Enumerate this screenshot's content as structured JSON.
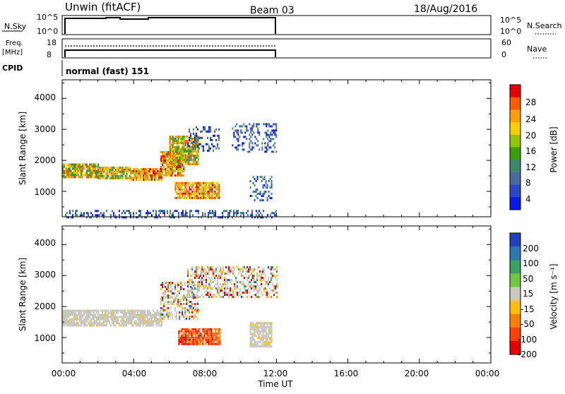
{
  "header": {
    "station": "Unwin (fitACF)",
    "beam": "Beam 03",
    "date": "18/Aug/2016"
  },
  "nsky_panel": {
    "label": "N.Sky",
    "left_ticks": [
      "10^5",
      "10^0"
    ],
    "right_ticks": [
      "10^5",
      "10^0"
    ],
    "right_label": "N.Search"
  },
  "freq_panel": {
    "label_line1": "Freq.",
    "label_line2": "[MHz]",
    "left_ticks": [
      "18",
      "8"
    ],
    "right_ticks": [
      "60",
      "0"
    ],
    "right_label": "Nave"
  },
  "cpid": {
    "label": "CPID",
    "value": "normal (fast) 151"
  },
  "chart_data": [
    {
      "type": "heatmap",
      "quantity": "Power",
      "ylabel": "Slant Range [km]",
      "ylim": [
        180,
        4600
      ],
      "yticks": [
        "4000",
        "3000",
        "2000",
        "1000"
      ],
      "xlim_hours": [
        0,
        24
      ],
      "colorbar": {
        "label": "Power [dB]",
        "ticks": [
          "28",
          "24",
          "20",
          "16",
          "12",
          "8",
          "4"
        ],
        "colors": [
          "#e80000",
          "#ff5a00",
          "#ffa000",
          "#ffd000",
          "#90c800",
          "#38a000",
          "#3a8a6a",
          "#4a6aa0",
          "#2848c8",
          "#0818f0"
        ]
      },
      "echo_regions": [
        {
          "t": [
            0.0,
            2.0
          ],
          "r": [
            1450,
            1900
          ],
          "level": "mid"
        },
        {
          "t": [
            2.0,
            3.8
          ],
          "r": [
            1400,
            1800
          ],
          "level": "mid"
        },
        {
          "t": [
            3.8,
            5.6
          ],
          "r": [
            1400,
            1750
          ],
          "level": "high"
        },
        {
          "t": [
            5.5,
            6.8
          ],
          "r": [
            1500,
            2300
          ],
          "level": "high"
        },
        {
          "t": [
            6.0,
            7.6
          ],
          "r": [
            1900,
            2800
          ],
          "level": "mid"
        },
        {
          "t": [
            6.3,
            8.8
          ],
          "r": [
            780,
            1300
          ],
          "level": "high"
        },
        {
          "t": [
            7.0,
            8.8
          ],
          "r": [
            2300,
            3100
          ],
          "level": "low"
        },
        {
          "t": [
            9.5,
            12.0
          ],
          "r": [
            2300,
            3200
          ],
          "level": "low"
        },
        {
          "t": [
            10.5,
            11.7
          ],
          "r": [
            700,
            1500
          ],
          "level": "low"
        },
        {
          "t": [
            0.0,
            12.0
          ],
          "r": [
            180,
            400
          ],
          "level": "low"
        }
      ]
    },
    {
      "type": "heatmap",
      "quantity": "Velocity",
      "ylabel": "Slant Range [km]",
      "ylim": [
        180,
        4600
      ],
      "yticks": [
        "4000",
        "3000",
        "2000",
        "1000"
      ],
      "xlim_hours": [
        0,
        24
      ],
      "colorbar": {
        "label": "Velocity [m s⁻¹]",
        "ticks": [
          "200",
          "100",
          "50",
          "15",
          "-15",
          "-50",
          "-100",
          "-200"
        ],
        "colors": [
          "#2040c0",
          "#2a78b0",
          "#3aa060",
          "#70c840",
          "#c8c8c0",
          "#ffc000",
          "#ff8000",
          "#ff4000",
          "#e80000"
        ]
      },
      "echo_regions": [
        {
          "t": [
            0.0,
            5.6
          ],
          "r": [
            1400,
            1900
          ],
          "level": "ground"
        },
        {
          "t": [
            5.5,
            7.6
          ],
          "r": [
            1600,
            2800
          ],
          "level": "mixed"
        },
        {
          "t": [
            6.5,
            8.8
          ],
          "r": [
            780,
            1300
          ],
          "level": "negative"
        },
        {
          "t": [
            7.0,
            12.0
          ],
          "r": [
            2300,
            3300
          ],
          "level": "mixed"
        },
        {
          "t": [
            10.5,
            11.7
          ],
          "r": [
            700,
            1500
          ],
          "level": "ground"
        }
      ]
    }
  ],
  "time_axis": {
    "ticks": [
      "00:00",
      "04:00",
      "08:00",
      "12:00",
      "16:00",
      "20:00",
      "00:00"
    ],
    "label": "Time UT"
  }
}
